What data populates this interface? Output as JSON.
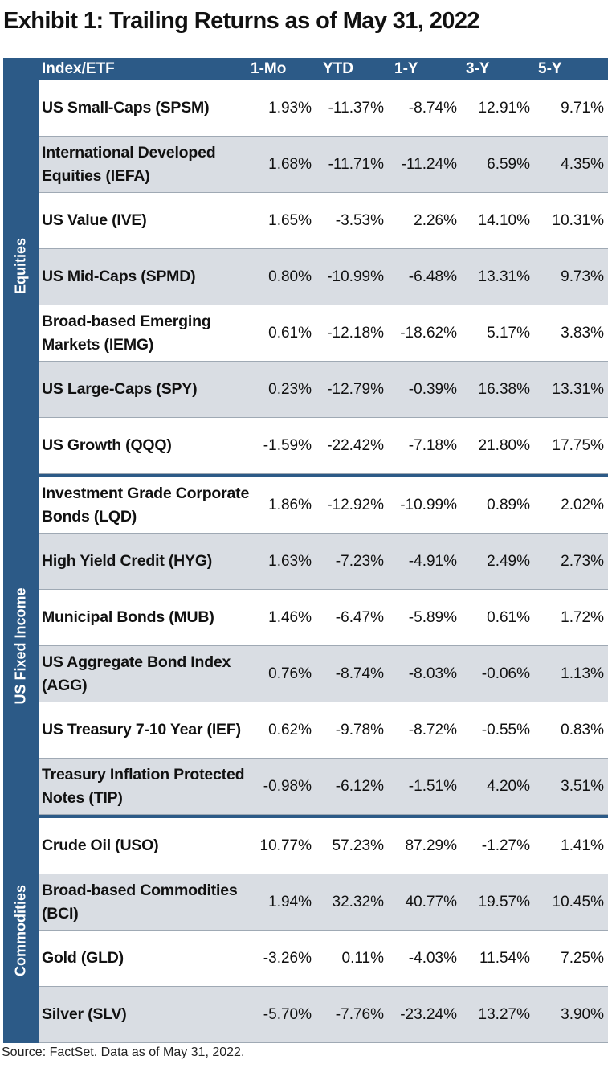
{
  "title": "Exhibit 1: Trailing Returns as of May 31, 2022",
  "columns": [
    "Index/ETF",
    "1-Mo",
    "YTD",
    "1-Y",
    "3-Y",
    "5-Y"
  ],
  "groups": [
    {
      "label": "Equities",
      "rows": [
        {
          "name": "US Small-Caps (SPSM)",
          "values": [
            "1.93%",
            "-11.37%",
            "-8.74%",
            "12.91%",
            "9.71%"
          ]
        },
        {
          "name": "International Developed Equities (IEFA)",
          "values": [
            "1.68%",
            "-11.71%",
            "-11.24%",
            "6.59%",
            "4.35%"
          ]
        },
        {
          "name": "US Value (IVE)",
          "values": [
            "1.65%",
            "-3.53%",
            "2.26%",
            "14.10%",
            "10.31%"
          ]
        },
        {
          "name": "US Mid-Caps (SPMD)",
          "values": [
            "0.80%",
            "-10.99%",
            "-6.48%",
            "13.31%",
            "9.73%"
          ]
        },
        {
          "name": "Broad-based Emerging Markets (IEMG)",
          "values": [
            "0.61%",
            "-12.18%",
            "-18.62%",
            "5.17%",
            "3.83%"
          ]
        },
        {
          "name": "US Large-Caps (SPY)",
          "values": [
            "0.23%",
            "-12.79%",
            "-0.39%",
            "16.38%",
            "13.31%"
          ]
        },
        {
          "name": "US Growth (QQQ)",
          "values": [
            "-1.59%",
            "-22.42%",
            "-7.18%",
            "21.80%",
            "17.75%"
          ]
        }
      ]
    },
    {
      "label": "US Fixed Income",
      "rows": [
        {
          "name": "Investment Grade Corporate Bonds (LQD)",
          "values": [
            "1.86%",
            "-12.92%",
            "-10.99%",
            "0.89%",
            "2.02%"
          ]
        },
        {
          "name": "High Yield Credit (HYG)",
          "values": [
            "1.63%",
            "-7.23%",
            "-4.91%",
            "2.49%",
            "2.73%"
          ]
        },
        {
          "name": "Municipal Bonds (MUB)",
          "values": [
            "1.46%",
            "-6.47%",
            "-5.89%",
            "0.61%",
            "1.72%"
          ]
        },
        {
          "name": "US Aggregate Bond Index (AGG)",
          "values": [
            "0.76%",
            "-8.74%",
            "-8.03%",
            "-0.06%",
            "1.13%"
          ]
        },
        {
          "name": "US Treasury 7-10 Year (IEF)",
          "values": [
            "0.62%",
            "-9.78%",
            "-8.72%",
            "-0.55%",
            "0.83%"
          ]
        },
        {
          "name": "Treasury Inflation Protected Notes (TIP)",
          "values": [
            "-0.98%",
            "-6.12%",
            "-1.51%",
            "4.20%",
            "3.51%"
          ]
        }
      ]
    },
    {
      "label": "Commodities",
      "rows": [
        {
          "name": "Crude Oil (USO)",
          "values": [
            "10.77%",
            "57.23%",
            "87.29%",
            "-1.27%",
            "1.41%"
          ]
        },
        {
          "name": "Broad-based Commodities (BCI)",
          "values": [
            "1.94%",
            "32.32%",
            "40.77%",
            "19.57%",
            "10.45%"
          ]
        },
        {
          "name": "Gold (GLD)",
          "values": [
            "-3.26%",
            "0.11%",
            "-4.03%",
            "11.54%",
            "7.25%"
          ]
        },
        {
          "name": "Silver (SLV)",
          "values": [
            "-5.70%",
            "-7.76%",
            "-23.24%",
            "13.27%",
            "3.90%"
          ]
        }
      ]
    }
  ],
  "source": "Source: FactSet. Data as of May 31, 2022.",
  "colors": {
    "header_bg": "#2c5a87",
    "row_shade": "#d9dde3",
    "header_text": "#ffffff"
  }
}
